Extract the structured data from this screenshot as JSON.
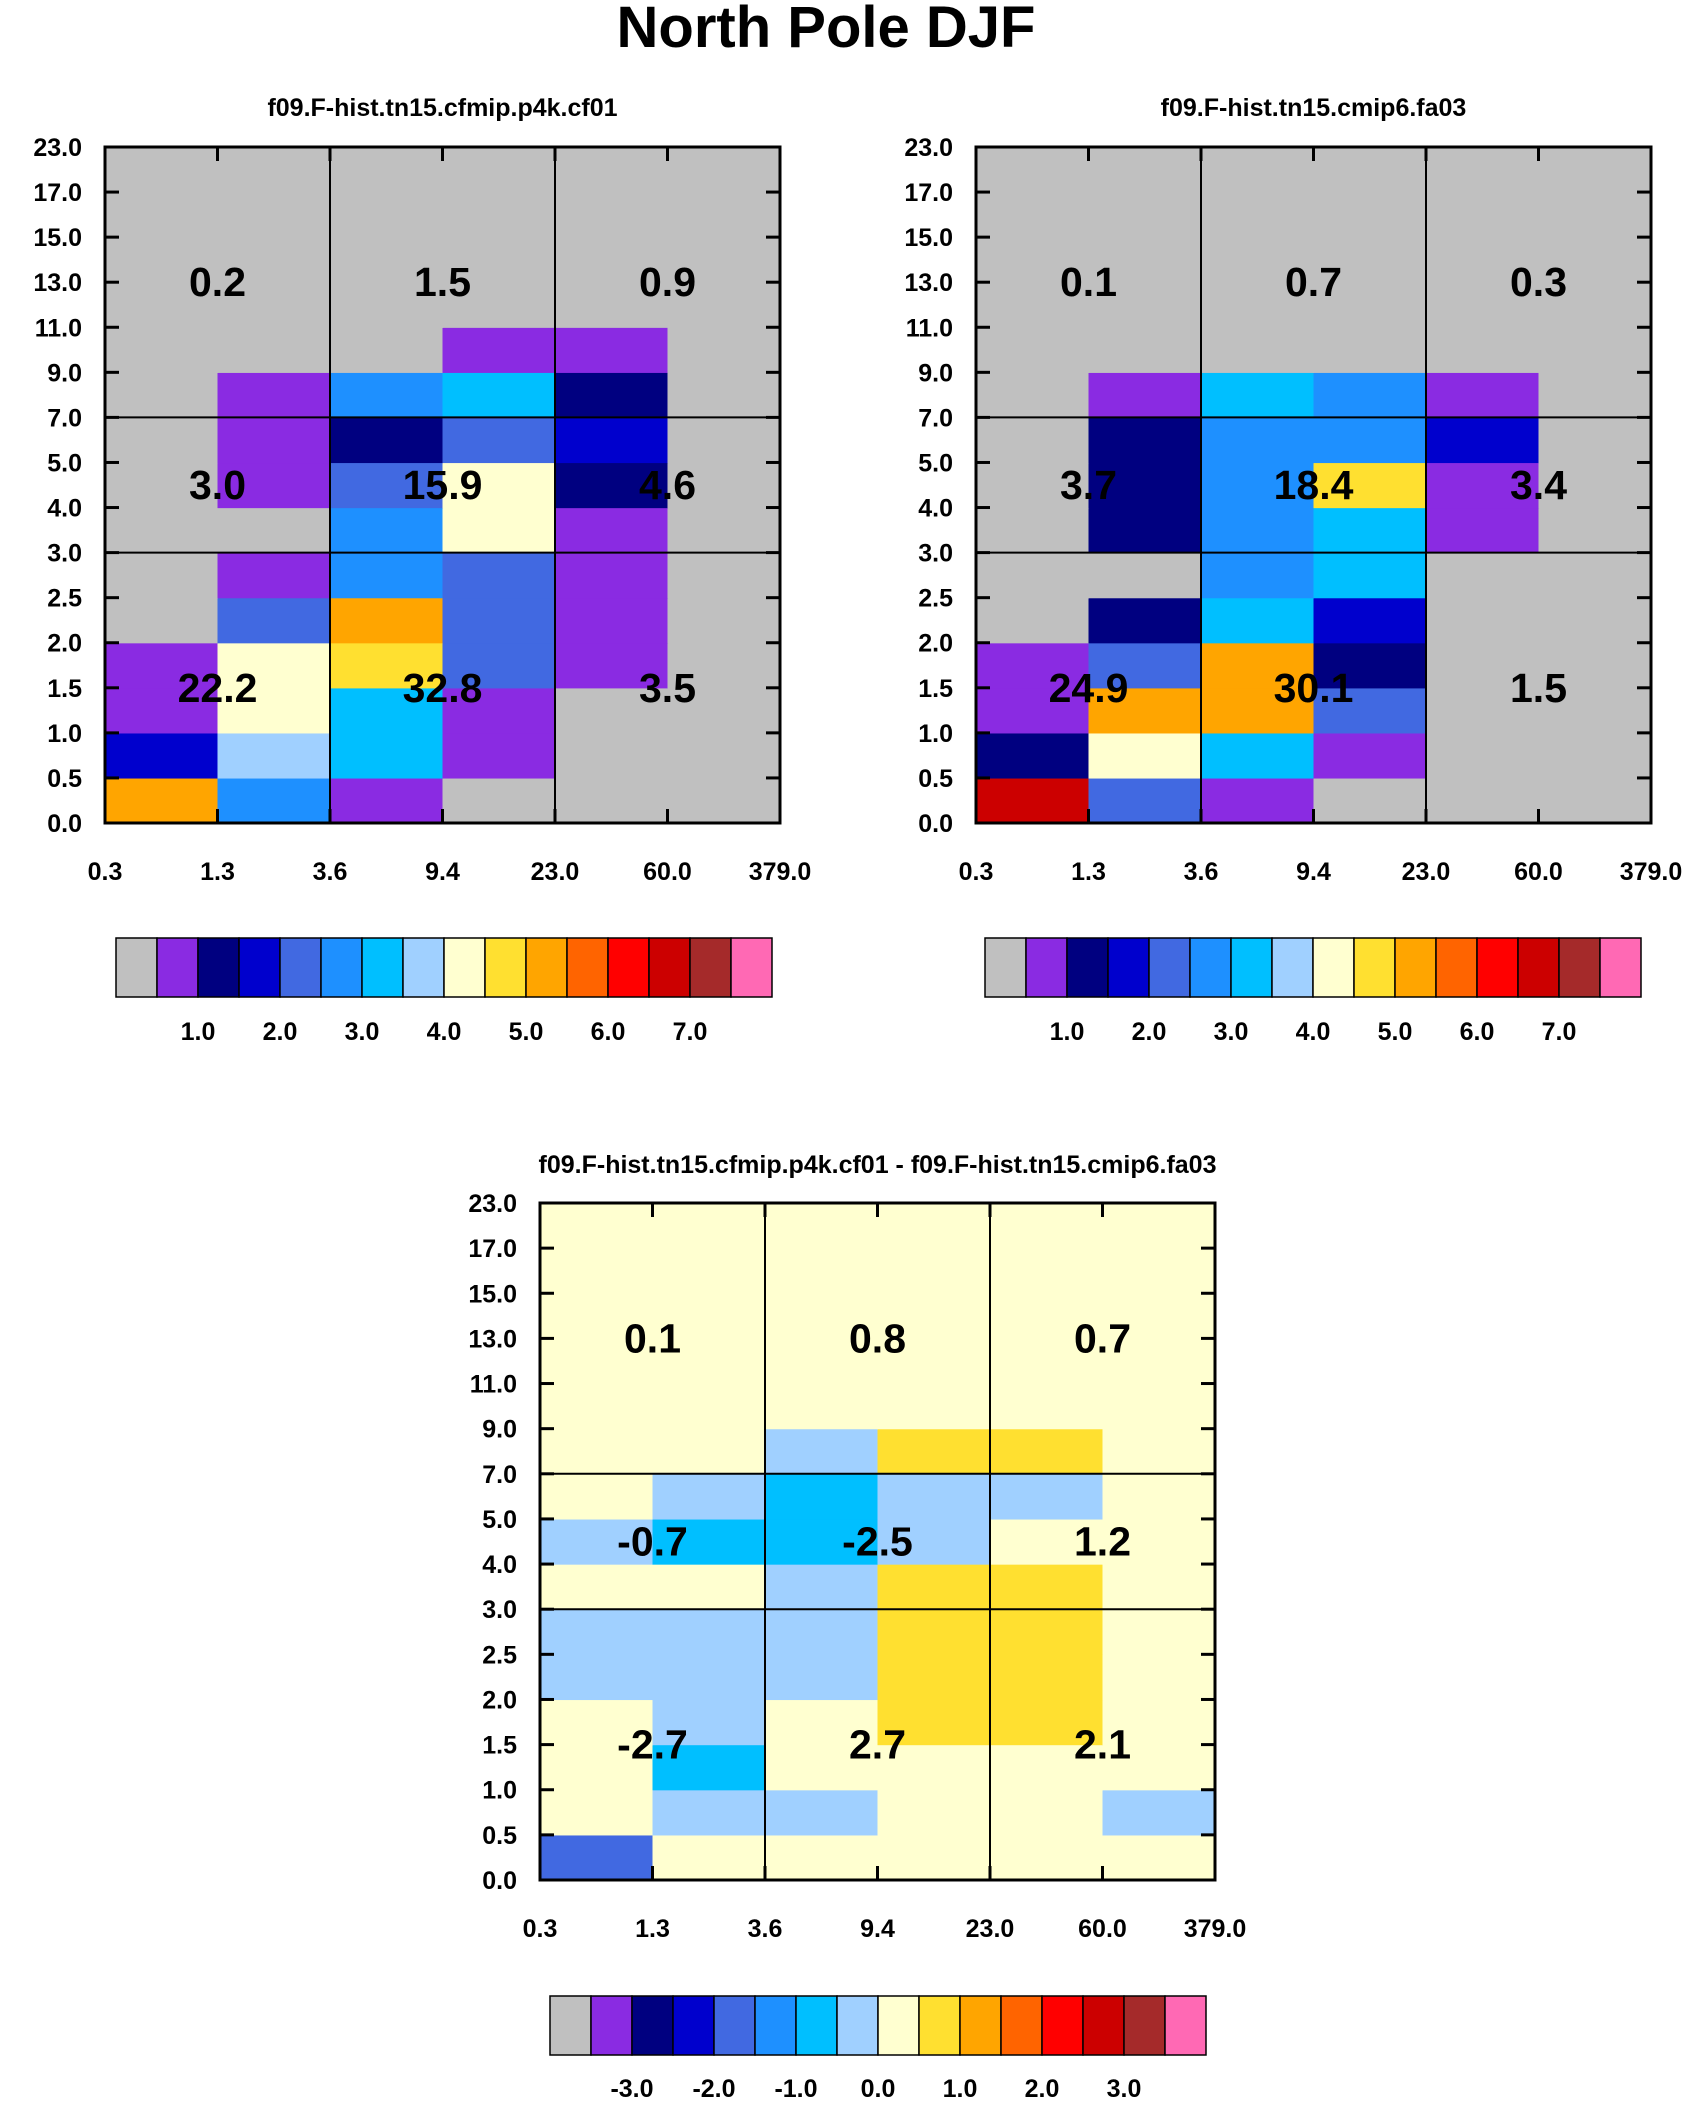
{
  "title": "North Pole DJF",
  "chart_data": [
    {
      "type": "heatmap",
      "title": "f09.F-hist.tn15.cfmip.p4k.cf01",
      "xticks": [
        "0.3",
        "1.3",
        "3.6",
        "9.4",
        "23.0",
        "60.0",
        "379.0"
      ],
      "yticks": [
        "0.0",
        "0.5",
        "1.0",
        "1.5",
        "2.0",
        "2.5",
        "3.0",
        "4.0",
        "5.0",
        "7.0",
        "9.0",
        "11.0",
        "13.0",
        "15.0",
        "17.0",
        "23.0"
      ],
      "grid": [
        [
          10,
          5,
          1,
          0,
          0,
          0
        ],
        [
          3,
          7,
          6,
          1,
          0,
          0
        ],
        [
          1,
          8,
          6,
          1,
          0,
          0
        ],
        [
          1,
          8,
          9,
          4,
          1,
          0
        ],
        [
          0,
          4,
          10,
          4,
          1,
          0
        ],
        [
          0,
          1,
          5,
          4,
          1,
          0
        ],
        [
          0,
          0,
          5,
          8,
          1,
          0
        ],
        [
          0,
          1,
          4,
          8,
          2,
          0
        ],
        [
          0,
          1,
          2,
          4,
          3,
          0
        ],
        [
          0,
          1,
          5,
          6,
          2,
          0
        ],
        [
          0,
          0,
          0,
          1,
          1,
          0
        ],
        [
          0,
          0,
          0,
          0,
          0,
          0
        ],
        [
          0,
          0,
          0,
          0,
          0,
          0
        ],
        [
          0,
          0,
          0,
          0,
          0,
          0
        ],
        [
          0,
          0,
          0,
          0,
          0,
          0
        ]
      ],
      "sector_values": [
        [
          "0.2",
          "1.5",
          "0.9"
        ],
        [
          "3.0",
          "15.9",
          "4.6"
        ],
        [
          "22.2",
          "32.8",
          "3.5"
        ]
      ],
      "colorbar": {
        "colors": [
          "#c0c0c0",
          "#8a2be2",
          "#000080",
          "#0000cd",
          "#4169e1",
          "#1e90ff",
          "#00bfff",
          "#a0d0ff",
          "#ffffd0",
          "#ffe030",
          "#ffa500",
          "#ff6400",
          "#ff0000",
          "#cc0000",
          "#a52a2a",
          "#ff69b4"
        ],
        "labels": [
          "1.0",
          "2.0",
          "3.0",
          "4.0",
          "5.0",
          "6.0",
          "7.0"
        ]
      }
    },
    {
      "type": "heatmap",
      "title": "f09.F-hist.tn15.cmip6.fa03",
      "xticks": [
        "0.3",
        "1.3",
        "3.6",
        "9.4",
        "23.0",
        "60.0",
        "379.0"
      ],
      "yticks": [
        "0.0",
        "0.5",
        "1.0",
        "1.5",
        "2.0",
        "2.5",
        "3.0",
        "4.0",
        "5.0",
        "7.0",
        "9.0",
        "11.0",
        "13.0",
        "15.0",
        "17.0",
        "23.0"
      ],
      "grid": [
        [
          13,
          4,
          1,
          0,
          0,
          0
        ],
        [
          2,
          8,
          6,
          1,
          0,
          0
        ],
        [
          1,
          10,
          10,
          4,
          0,
          0
        ],
        [
          1,
          4,
          10,
          2,
          0,
          0
        ],
        [
          0,
          2,
          6,
          3,
          0,
          0
        ],
        [
          0,
          0,
          5,
          6,
          0,
          0
        ],
        [
          0,
          2,
          5,
          6,
          1,
          0
        ],
        [
          0,
          2,
          5,
          9,
          1,
          0
        ],
        [
          0,
          2,
          5,
          5,
          3,
          0
        ],
        [
          0,
          1,
          6,
          5,
          1,
          0
        ],
        [
          0,
          0,
          0,
          0,
          0,
          0
        ],
        [
          0,
          0,
          0,
          0,
          0,
          0
        ],
        [
          0,
          0,
          0,
          0,
          0,
          0
        ],
        [
          0,
          0,
          0,
          0,
          0,
          0
        ],
        [
          0,
          0,
          0,
          0,
          0,
          0
        ]
      ],
      "sector_values": [
        [
          "0.1",
          "0.7",
          "0.3"
        ],
        [
          "3.7",
          "18.4",
          "3.4"
        ],
        [
          "24.9",
          "30.1",
          "1.5"
        ]
      ],
      "colorbar": {
        "colors": [
          "#c0c0c0",
          "#8a2be2",
          "#000080",
          "#0000cd",
          "#4169e1",
          "#1e90ff",
          "#00bfff",
          "#a0d0ff",
          "#ffffd0",
          "#ffe030",
          "#ffa500",
          "#ff6400",
          "#ff0000",
          "#cc0000",
          "#a52a2a",
          "#ff69b4"
        ],
        "labels": [
          "1.0",
          "2.0",
          "3.0",
          "4.0",
          "5.0",
          "6.0",
          "7.0"
        ]
      }
    },
    {
      "type": "heatmap",
      "title": "f09.F-hist.tn15.cfmip.p4k.cf01 - f09.F-hist.tn15.cmip6.fa03",
      "xticks": [
        "0.3",
        "1.3",
        "3.6",
        "9.4",
        "23.0",
        "60.0",
        "379.0"
      ],
      "yticks": [
        "0.0",
        "0.5",
        "1.0",
        "1.5",
        "2.0",
        "2.5",
        "3.0",
        "4.0",
        "5.0",
        "7.0",
        "9.0",
        "11.0",
        "13.0",
        "15.0",
        "17.0",
        "23.0"
      ],
      "grid": [
        [
          4,
          8,
          8,
          8,
          8,
          8
        ],
        [
          8,
          7,
          7,
          8,
          8,
          7
        ],
        [
          8,
          6,
          8,
          8,
          8,
          8
        ],
        [
          8,
          7,
          8,
          9,
          9,
          8
        ],
        [
          7,
          7,
          7,
          9,
          9,
          8
        ],
        [
          7,
          7,
          7,
          9,
          9,
          8
        ],
        [
          8,
          8,
          7,
          9,
          9,
          8
        ],
        [
          7,
          6,
          6,
          7,
          8,
          8
        ],
        [
          8,
          7,
          6,
          7,
          7,
          8
        ],
        [
          8,
          8,
          7,
          9,
          9,
          8
        ],
        [
          8,
          8,
          8,
          8,
          8,
          8
        ],
        [
          8,
          8,
          8,
          8,
          8,
          8
        ],
        [
          8,
          8,
          8,
          8,
          8,
          8
        ],
        [
          8,
          8,
          8,
          8,
          8,
          8
        ],
        [
          8,
          8,
          8,
          8,
          8,
          8
        ]
      ],
      "sector_values": [
        [
          "0.1",
          "0.8",
          "0.7"
        ],
        [
          "-0.7",
          "-2.5",
          "1.2"
        ],
        [
          "-2.7",
          "2.7",
          "2.1"
        ]
      ],
      "colorbar": {
        "colors": [
          "#c0c0c0",
          "#8a2be2",
          "#000080",
          "#0000cd",
          "#4169e1",
          "#1e90ff",
          "#00bfff",
          "#a0d0ff",
          "#ffffd0",
          "#ffe030",
          "#ffa500",
          "#ff6400",
          "#ff0000",
          "#cc0000",
          "#a52a2a",
          "#ff69b4"
        ],
        "labels": [
          "-3.0",
          "-2.0",
          "-1.0",
          "0.0",
          "1.0",
          "2.0",
          "3.0"
        ]
      }
    }
  ]
}
